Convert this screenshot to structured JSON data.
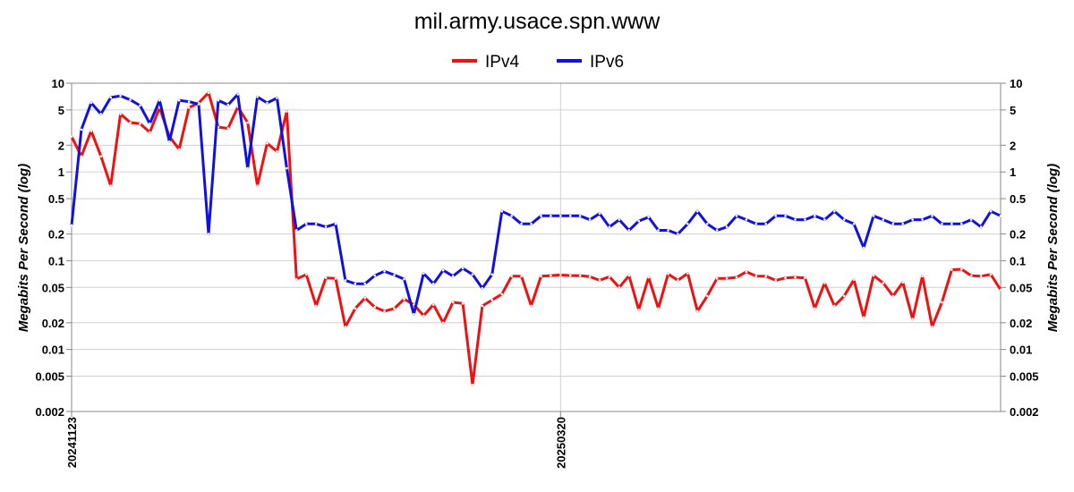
{
  "chart_data": {
    "type": "line",
    "title": "mil.army.usace.spn.www",
    "ylabel": "Megabits Per Second (log)",
    "ylabel_right": "Megabits Per Second (log)",
    "yscale": "log",
    "ylim": [
      0.002,
      10
    ],
    "y_ticks": [
      {
        "value": 10,
        "label": "10"
      },
      {
        "value": 5,
        "label": "5"
      },
      {
        "value": 2,
        "label": "2"
      },
      {
        "value": 1,
        "label": "1"
      },
      {
        "value": 0.5,
        "label": "0.5"
      },
      {
        "value": 0.2,
        "label": "0.2"
      },
      {
        "value": 0.1,
        "label": "0.1"
      },
      {
        "value": 0.05,
        "label": "0.05"
      },
      {
        "value": 0.02,
        "label": "0.02"
      },
      {
        "value": 0.01,
        "label": "0.01"
      },
      {
        "value": 0.005,
        "label": "0.005"
      },
      {
        "value": 0.002,
        "label": "0.002"
      }
    ],
    "x_ticks": [
      {
        "index": 0,
        "label": "20241123"
      },
      {
        "index": 50,
        "label": "20250320"
      }
    ],
    "grid": true,
    "legend_position": "top-center",
    "series": [
      {
        "name": "IPv4",
        "color": "#ee1111",
        "values": [
          2.5,
          1.5,
          2.9,
          1.5,
          0.7,
          4.5,
          3.6,
          3.5,
          2.8,
          5.3,
          2.5,
          1.8,
          5.3,
          6.0,
          7.8,
          3.2,
          3.1,
          5.4,
          3.6,
          0.7,
          2.1,
          1.7,
          4.8,
          0.062,
          0.07,
          0.031,
          0.064,
          0.063,
          0.018,
          0.029,
          0.038,
          0.03,
          0.027,
          0.029,
          0.037,
          0.032,
          0.024,
          0.032,
          0.02,
          0.034,
          0.033,
          0.004,
          0.031,
          0.036,
          0.042,
          0.067,
          0.067,
          0.031,
          0.067,
          0.068,
          0.069,
          0.068,
          0.068,
          0.066,
          0.06,
          0.066,
          0.05,
          0.068,
          0.028,
          0.065,
          0.029,
          0.071,
          0.06,
          0.072,
          0.027,
          0.04,
          0.063,
          0.063,
          0.065,
          0.075,
          0.067,
          0.067,
          0.06,
          0.064,
          0.065,
          0.064,
          0.029,
          0.056,
          0.031,
          0.04,
          0.061,
          0.023,
          0.068,
          0.056,
          0.04,
          0.057,
          0.022,
          0.067,
          0.018,
          0.034,
          0.079,
          0.08,
          0.068,
          0.067,
          0.07,
          0.047
        ]
      },
      {
        "name": "IPv6",
        "color": "#1111dd",
        "values": [
          0.25,
          3.0,
          6.0,
          4.5,
          6.9,
          7.2,
          6.5,
          5.6,
          3.5,
          6.4,
          2.2,
          6.4,
          6.2,
          5.8,
          0.2,
          6.4,
          5.7,
          7.5,
          1.1,
          7.0,
          6.0,
          6.8,
          1.1,
          0.22,
          0.26,
          0.26,
          0.24,
          0.26,
          0.06,
          0.055,
          0.055,
          0.068,
          0.076,
          0.069,
          0.062,
          0.025,
          0.072,
          0.055,
          0.078,
          0.067,
          0.082,
          0.07,
          0.049,
          0.07,
          0.36,
          0.32,
          0.26,
          0.26,
          0.32,
          0.32,
          0.32,
          0.32,
          0.32,
          0.29,
          0.34,
          0.24,
          0.29,
          0.22,
          0.28,
          0.31,
          0.22,
          0.22,
          0.2,
          0.26,
          0.36,
          0.26,
          0.22,
          0.24,
          0.32,
          0.29,
          0.26,
          0.26,
          0.32,
          0.32,
          0.29,
          0.29,
          0.32,
          0.29,
          0.36,
          0.29,
          0.26,
          0.14,
          0.32,
          0.29,
          0.26,
          0.26,
          0.29,
          0.29,
          0.32,
          0.26,
          0.26,
          0.26,
          0.29,
          0.24,
          0.36,
          0.32
        ]
      }
    ]
  }
}
